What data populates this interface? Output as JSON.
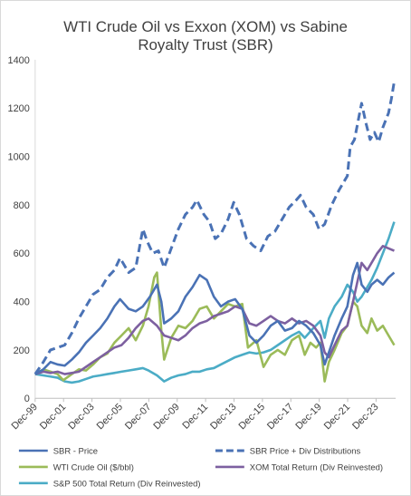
{
  "chart_data": {
    "type": "line",
    "title_lines": [
      "WTI Crude Oil vs Exxon (XOM) vs Sabine",
      "Royalty Trust (SBR)"
    ],
    "xlabel": "",
    "ylabel": "",
    "ylim": [
      0,
      1400
    ],
    "xlim": [
      1999.92,
      2025.3
    ],
    "grid": false,
    "legend_position": "bottom",
    "y_ticks": [
      0,
      200,
      400,
      600,
      800,
      1000,
      1200,
      1400
    ],
    "x_ticks": [
      {
        "value": 1999.92,
        "label": "Dec-99"
      },
      {
        "value": 2001.92,
        "label": "Dec-01"
      },
      {
        "value": 2003.92,
        "label": "Dec-03"
      },
      {
        "value": 2005.92,
        "label": "Dec-05"
      },
      {
        "value": 2007.92,
        "label": "Dec-07"
      },
      {
        "value": 2009.92,
        "label": "Dec-09"
      },
      {
        "value": 2011.92,
        "label": "Dec-11"
      },
      {
        "value": 2013.92,
        "label": "Dec-13"
      },
      {
        "value": 2015.92,
        "label": "Dec-15"
      },
      {
        "value": 2017.92,
        "label": "Dec-17"
      },
      {
        "value": 2019.92,
        "label": "Dec-19"
      },
      {
        "value": 2021.92,
        "label": "Dec-21"
      },
      {
        "value": 2023.92,
        "label": "Dec-23"
      }
    ],
    "series": [
      {
        "name": "SBR - Price",
        "color": "#4a72b5",
        "dashed": false,
        "points": [
          [
            1999.92,
            100
          ],
          [
            2000.5,
            120
          ],
          [
            2001.0,
            150
          ],
          [
            2001.5,
            140
          ],
          [
            2002.0,
            135
          ],
          [
            2002.5,
            160
          ],
          [
            2003.0,
            190
          ],
          [
            2003.5,
            230
          ],
          [
            2004.0,
            260
          ],
          [
            2004.5,
            290
          ],
          [
            2005.0,
            330
          ],
          [
            2005.5,
            380
          ],
          [
            2005.9,
            410
          ],
          [
            2006.5,
            370
          ],
          [
            2007.0,
            360
          ],
          [
            2007.5,
            380
          ],
          [
            2008.0,
            420
          ],
          [
            2008.5,
            470
          ],
          [
            2008.8,
            400
          ],
          [
            2009.0,
            310
          ],
          [
            2009.5,
            330
          ],
          [
            2010.0,
            360
          ],
          [
            2010.5,
            420
          ],
          [
            2011.0,
            460
          ],
          [
            2011.5,
            510
          ],
          [
            2012.0,
            490
          ],
          [
            2012.5,
            420
          ],
          [
            2013.0,
            380
          ],
          [
            2013.5,
            400
          ],
          [
            2014.0,
            410
          ],
          [
            2014.5,
            370
          ],
          [
            2015.0,
            260
          ],
          [
            2015.5,
            230
          ],
          [
            2016.0,
            260
          ],
          [
            2016.5,
            300
          ],
          [
            2017.0,
            320
          ],
          [
            2017.5,
            280
          ],
          [
            2018.0,
            290
          ],
          [
            2018.5,
            320
          ],
          [
            2019.0,
            300
          ],
          [
            2019.5,
            270
          ],
          [
            2020.0,
            220
          ],
          [
            2020.3,
            140
          ],
          [
            2020.6,
            190
          ],
          [
            2021.0,
            260
          ],
          [
            2021.5,
            330
          ],
          [
            2021.9,
            380
          ],
          [
            2022.3,
            510
          ],
          [
            2022.6,
            560
          ],
          [
            2022.9,
            470
          ],
          [
            2023.3,
            440
          ],
          [
            2023.6,
            470
          ],
          [
            2024.0,
            490
          ],
          [
            2024.4,
            470
          ],
          [
            2024.8,
            500
          ],
          [
            2025.2,
            520
          ]
        ]
      },
      {
        "name": "SBR Price + Div Distributions",
        "color": "#4a72b5",
        "dashed": true,
        "points": [
          [
            1999.92,
            100
          ],
          [
            2000.5,
            150
          ],
          [
            2001.0,
            200
          ],
          [
            2001.5,
            210
          ],
          [
            2002.0,
            220
          ],
          [
            2002.5,
            270
          ],
          [
            2003.0,
            330
          ],
          [
            2003.5,
            380
          ],
          [
            2004.0,
            430
          ],
          [
            2004.5,
            450
          ],
          [
            2005.0,
            500
          ],
          [
            2005.5,
            530
          ],
          [
            2005.9,
            580
          ],
          [
            2006.5,
            520
          ],
          [
            2007.0,
            540
          ],
          [
            2007.5,
            700
          ],
          [
            2007.8,
            650
          ],
          [
            2008.2,
            600
          ],
          [
            2008.6,
            610
          ],
          [
            2009.0,
            540
          ],
          [
            2009.5,
            620
          ],
          [
            2010.0,
            700
          ],
          [
            2010.5,
            760
          ],
          [
            2011.0,
            790
          ],
          [
            2011.3,
            820
          ],
          [
            2011.8,
            760
          ],
          [
            2012.2,
            730
          ],
          [
            2012.6,
            660
          ],
          [
            2013.0,
            680
          ],
          [
            2013.5,
            740
          ],
          [
            2013.9,
            810
          ],
          [
            2014.3,
            760
          ],
          [
            2014.8,
            660
          ],
          [
            2015.3,
            630
          ],
          [
            2015.8,
            610
          ],
          [
            2016.3,
            670
          ],
          [
            2016.8,
            690
          ],
          [
            2017.3,
            740
          ],
          [
            2017.8,
            790
          ],
          [
            2018.3,
            820
          ],
          [
            2018.6,
            840
          ],
          [
            2019.0,
            790
          ],
          [
            2019.5,
            760
          ],
          [
            2019.9,
            700
          ],
          [
            2020.3,
            720
          ],
          [
            2020.8,
            800
          ],
          [
            2021.3,
            860
          ],
          [
            2021.9,
            920
          ],
          [
            2022.1,
            1040
          ],
          [
            2022.4,
            1070
          ],
          [
            2022.7,
            1160
          ],
          [
            2022.9,
            1220
          ],
          [
            2023.2,
            1140
          ],
          [
            2023.5,
            1070
          ],
          [
            2023.8,
            1100
          ],
          [
            2024.1,
            1060
          ],
          [
            2024.4,
            1120
          ],
          [
            2024.8,
            1180
          ],
          [
            2025.0,
            1240
          ],
          [
            2025.2,
            1310
          ]
        ]
      },
      {
        "name": "WTI Crude Oil ($/bbl)",
        "color": "#9bbb59",
        "dashed": false,
        "points": [
          [
            1999.92,
            100
          ],
          [
            2000.5,
            120
          ],
          [
            2001.0,
            110
          ],
          [
            2001.5,
            100
          ],
          [
            2001.9,
            75
          ],
          [
            2002.5,
            100
          ],
          [
            2003.0,
            120
          ],
          [
            2003.5,
            115
          ],
          [
            2004.0,
            140
          ],
          [
            2004.5,
            170
          ],
          [
            2005.0,
            185
          ],
          [
            2005.5,
            230
          ],
          [
            2006.0,
            260
          ],
          [
            2006.5,
            290
          ],
          [
            2007.0,
            240
          ],
          [
            2007.5,
            300
          ],
          [
            2007.9,
            380
          ],
          [
            2008.3,
            500
          ],
          [
            2008.5,
            520
          ],
          [
            2008.8,
            280
          ],
          [
            2009.0,
            160
          ],
          [
            2009.5,
            250
          ],
          [
            2010.0,
            300
          ],
          [
            2010.5,
            290
          ],
          [
            2011.0,
            320
          ],
          [
            2011.5,
            370
          ],
          [
            2012.0,
            380
          ],
          [
            2012.5,
            330
          ],
          [
            2013.0,
            360
          ],
          [
            2013.5,
            390
          ],
          [
            2014.0,
            380
          ],
          [
            2014.5,
            390
          ],
          [
            2014.9,
            210
          ],
          [
            2015.5,
            240
          ],
          [
            2016.0,
            130
          ],
          [
            2016.5,
            180
          ],
          [
            2017.0,
            200
          ],
          [
            2017.5,
            180
          ],
          [
            2018.0,
            240
          ],
          [
            2018.5,
            260
          ],
          [
            2018.9,
            180
          ],
          [
            2019.3,
            230
          ],
          [
            2019.7,
            210
          ],
          [
            2020.0,
            230
          ],
          [
            2020.3,
            70
          ],
          [
            2020.6,
            150
          ],
          [
            2021.0,
            200
          ],
          [
            2021.5,
            270
          ],
          [
            2021.9,
            300
          ],
          [
            2022.3,
            400
          ],
          [
            2022.6,
            380
          ],
          [
            2022.9,
            300
          ],
          [
            2023.3,
            270
          ],
          [
            2023.6,
            330
          ],
          [
            2024.0,
            280
          ],
          [
            2024.4,
            300
          ],
          [
            2024.8,
            260
          ],
          [
            2025.2,
            220
          ]
        ]
      },
      {
        "name": "XOM Total Return (Div Reinvested)",
        "color": "#7d60a0",
        "dashed": false,
        "points": [
          [
            1999.92,
            100
          ],
          [
            2000.5,
            110
          ],
          [
            2001.0,
            105
          ],
          [
            2001.5,
            110
          ],
          [
            2002.0,
            100
          ],
          [
            2002.5,
            105
          ],
          [
            2003.0,
            110
          ],
          [
            2003.5,
            130
          ],
          [
            2004.0,
            150
          ],
          [
            2004.5,
            170
          ],
          [
            2005.0,
            190
          ],
          [
            2005.5,
            210
          ],
          [
            2006.0,
            220
          ],
          [
            2006.5,
            250
          ],
          [
            2007.0,
            290
          ],
          [
            2007.5,
            320
          ],
          [
            2007.9,
            330
          ],
          [
            2008.5,
            300
          ],
          [
            2009.0,
            260
          ],
          [
            2009.5,
            250
          ],
          [
            2010.0,
            240
          ],
          [
            2010.5,
            260
          ],
          [
            2011.0,
            290
          ],
          [
            2011.5,
            310
          ],
          [
            2012.0,
            320
          ],
          [
            2012.5,
            340
          ],
          [
            2013.0,
            350
          ],
          [
            2013.5,
            360
          ],
          [
            2014.0,
            380
          ],
          [
            2014.5,
            370
          ],
          [
            2015.0,
            310
          ],
          [
            2015.5,
            300
          ],
          [
            2016.0,
            320
          ],
          [
            2016.5,
            340
          ],
          [
            2017.0,
            320
          ],
          [
            2017.5,
            310
          ],
          [
            2018.0,
            330
          ],
          [
            2018.5,
            310
          ],
          [
            2019.0,
            320
          ],
          [
            2019.5,
            300
          ],
          [
            2020.0,
            260
          ],
          [
            2020.3,
            190
          ],
          [
            2020.6,
            170
          ],
          [
            2021.0,
            220
          ],
          [
            2021.5,
            280
          ],
          [
            2021.9,
            300
          ],
          [
            2022.3,
            400
          ],
          [
            2022.6,
            480
          ],
          [
            2022.9,
            560
          ],
          [
            2023.3,
            530
          ],
          [
            2023.6,
            560
          ],
          [
            2024.0,
            600
          ],
          [
            2024.4,
            630
          ],
          [
            2024.8,
            620
          ],
          [
            2025.2,
            610
          ]
        ]
      },
      {
        "name": "S&P 500 Total Return (Div Reinvested)",
        "color": "#4bacc6",
        "dashed": false,
        "points": [
          [
            1999.92,
            100
          ],
          [
            2000.5,
            95
          ],
          [
            2001.0,
            90
          ],
          [
            2001.5,
            85
          ],
          [
            2002.0,
            70
          ],
          [
            2002.5,
            65
          ],
          [
            2003.0,
            70
          ],
          [
            2003.5,
            80
          ],
          [
            2004.0,
            90
          ],
          [
            2004.5,
            95
          ],
          [
            2005.0,
            100
          ],
          [
            2005.5,
            105
          ],
          [
            2006.0,
            110
          ],
          [
            2006.5,
            115
          ],
          [
            2007.0,
            120
          ],
          [
            2007.5,
            125
          ],
          [
            2007.9,
            115
          ],
          [
            2008.5,
            95
          ],
          [
            2009.0,
            70
          ],
          [
            2009.5,
            85
          ],
          [
            2010.0,
            95
          ],
          [
            2010.5,
            100
          ],
          [
            2011.0,
            110
          ],
          [
            2011.5,
            110
          ],
          [
            2012.0,
            120
          ],
          [
            2012.5,
            125
          ],
          [
            2013.0,
            140
          ],
          [
            2013.5,
            155
          ],
          [
            2014.0,
            170
          ],
          [
            2014.5,
            180
          ],
          [
            2015.0,
            190
          ],
          [
            2015.5,
            185
          ],
          [
            2016.0,
            190
          ],
          [
            2016.5,
            200
          ],
          [
            2017.0,
            220
          ],
          [
            2017.5,
            240
          ],
          [
            2018.0,
            260
          ],
          [
            2018.5,
            275
          ],
          [
            2018.9,
            250
          ],
          [
            2019.5,
            290
          ],
          [
            2020.0,
            320
          ],
          [
            2020.3,
            250
          ],
          [
            2020.6,
            330
          ],
          [
            2021.0,
            380
          ],
          [
            2021.5,
            420
          ],
          [
            2021.9,
            470
          ],
          [
            2022.3,
            440
          ],
          [
            2022.6,
            400
          ],
          [
            2022.9,
            420
          ],
          [
            2023.3,
            460
          ],
          [
            2023.6,
            490
          ],
          [
            2024.0,
            540
          ],
          [
            2024.4,
            600
          ],
          [
            2024.8,
            660
          ],
          [
            2025.2,
            730
          ]
        ]
      }
    ]
  }
}
